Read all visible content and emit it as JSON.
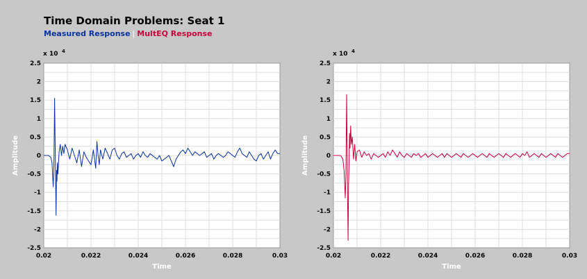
{
  "header": {
    "title": "Time Domain Problems: Seat 1",
    "legend": [
      {
        "label": "Measured Response",
        "color": "#0a32a0"
      },
      {
        "label": "MultEQ Response",
        "color": "#c8003c"
      }
    ],
    "separator": "|"
  },
  "chart_data": [
    {
      "type": "line",
      "xlabel": "Time",
      "ylabel": "Amplitude",
      "y_multiplier": "x 10",
      "y_exponent": "4",
      "xlim": [
        0.02,
        0.03
      ],
      "ylim": [
        -2.5,
        2.5
      ],
      "xticks": [
        "0.02",
        "0.022",
        "0.024",
        "0.026",
        "0.028",
        "0.03"
      ],
      "yticks": [
        "2.5",
        "2",
        "1.5",
        "1",
        "0.5",
        "0",
        "-0.5",
        "-1",
        "-1.5",
        "-2",
        "-2.5"
      ],
      "grid": true,
      "series": [
        {
          "name": "Measured Response",
          "color": "#0a32a0",
          "x": [
            0.02,
            0.0202,
            0.0203,
            0.02035,
            0.0204,
            0.02043,
            0.02046,
            0.02048,
            0.0205,
            0.02052,
            0.02054,
            0.02056,
            0.02058,
            0.0206,
            0.02065,
            0.0207,
            0.02075,
            0.0208,
            0.02085,
            0.0209,
            0.021,
            0.0211,
            0.0212,
            0.0213,
            0.0214,
            0.0215,
            0.0216,
            0.0217,
            0.0218,
            0.0219,
            0.022,
            0.0221,
            0.0222,
            0.02225,
            0.0223,
            0.02235,
            0.0224,
            0.0225,
            0.0226,
            0.0227,
            0.0228,
            0.0229,
            0.023,
            0.0231,
            0.0232,
            0.0233,
            0.0234,
            0.0235,
            0.0236,
            0.0237,
            0.0238,
            0.0239,
            0.024,
            0.0241,
            0.0242,
            0.0243,
            0.0244,
            0.0245,
            0.0246,
            0.0247,
            0.0248,
            0.0249,
            0.025,
            0.0251,
            0.0252,
            0.0253,
            0.0254,
            0.0255,
            0.0256,
            0.0257,
            0.0258,
            0.0259,
            0.026,
            0.0261,
            0.0262,
            0.0263,
            0.0264,
            0.0265,
            0.0266,
            0.0267,
            0.0268,
            0.0269,
            0.027,
            0.0271,
            0.0272,
            0.0273,
            0.0274,
            0.0275,
            0.0276,
            0.0277,
            0.0278,
            0.0279,
            0.028,
            0.0281,
            0.0282,
            0.0283,
            0.0284,
            0.0285,
            0.0286,
            0.0287,
            0.0288,
            0.0289,
            0.029,
            0.0291,
            0.0292,
            0.0293,
            0.0294,
            0.0295,
            0.0296,
            0.0297,
            0.0298,
            0.0299,
            0.03
          ],
          "y": [
            0,
            0,
            -0.05,
            -0.2,
            -0.85,
            -0.3,
            1.55,
            0.5,
            -0.6,
            -1.62,
            -0.4,
            -0.7,
            -0.2,
            -0.5,
            0.1,
            0.3,
            0.0,
            0.25,
            0.05,
            0.3,
            0.15,
            -0.1,
            0.2,
            0.0,
            -0.2,
            0.15,
            -0.3,
            0.1,
            -0.05,
            -0.15,
            -0.25,
            0.15,
            -0.35,
            0.38,
            0.0,
            -0.25,
            0.15,
            -0.1,
            0.2,
            0.05,
            -0.1,
            0.15,
            0.2,
            0.0,
            -0.1,
            0.05,
            0.1,
            -0.05,
            0.0,
            0.05,
            -0.1,
            0.0,
            0.05,
            -0.05,
            0.1,
            0.0,
            -0.05,
            0.05,
            0.0,
            -0.05,
            -0.1,
            0.0,
            -0.15,
            -0.1,
            -0.05,
            0.0,
            -0.15,
            -0.3,
            -0.1,
            0.0,
            0.1,
            0.15,
            0.05,
            0.2,
            0.1,
            0.0,
            0.1,
            0.05,
            0.0,
            0.05,
            0.1,
            -0.05,
            0.0,
            0.05,
            -0.1,
            0.0,
            0.05,
            0.0,
            -0.05,
            0.0,
            0.1,
            0.05,
            0.0,
            -0.05,
            0.1,
            0.2,
            0.05,
            0.0,
            -0.05,
            0.1,
            0.0,
            -0.1,
            -0.15,
            0.0,
            0.05,
            -0.1,
            0.0,
            0.1,
            -0.1,
            0.05,
            0.15,
            0.05,
            0.05
          ]
        }
      ]
    },
    {
      "type": "line",
      "xlabel": "Time",
      "ylabel": "Amplitude",
      "y_multiplier": "x 10",
      "y_exponent": "4",
      "xlim": [
        0.02,
        0.03
      ],
      "ylim": [
        -2.5,
        2.5
      ],
      "xticks": [
        "0.02",
        "0.022",
        "0.024",
        "0.026",
        "0.028",
        "0.03"
      ],
      "yticks": [
        "2.5",
        "2",
        "1.5",
        "1",
        "0.5",
        "0",
        "-0.5",
        "-1",
        "-1.5",
        "-2",
        "-2.5"
      ],
      "grid": true,
      "series": [
        {
          "name": "MultEQ Response",
          "color": "#c8003c",
          "x": [
            0.02,
            0.0203,
            0.0204,
            0.02045,
            0.0205,
            0.02053,
            0.02056,
            0.02058,
            0.0206,
            0.02062,
            0.02064,
            0.02066,
            0.02068,
            0.0207,
            0.02073,
            0.02076,
            0.0208,
            0.02085,
            0.0209,
            0.02095,
            0.021,
            0.0211,
            0.0212,
            0.0213,
            0.0214,
            0.0215,
            0.0216,
            0.0217,
            0.0218,
            0.0219,
            0.022,
            0.0221,
            0.0222,
            0.0223,
            0.0224,
            0.0225,
            0.0226,
            0.0227,
            0.0228,
            0.0229,
            0.023,
            0.0231,
            0.0232,
            0.0233,
            0.0234,
            0.0235,
            0.0236,
            0.0237,
            0.0238,
            0.0239,
            0.024,
            0.0241,
            0.0242,
            0.0243,
            0.0244,
            0.0245,
            0.0246,
            0.0247,
            0.0248,
            0.0249,
            0.025,
            0.0251,
            0.0252,
            0.0253,
            0.0254,
            0.0255,
            0.0256,
            0.0257,
            0.0258,
            0.0259,
            0.026,
            0.0261,
            0.0262,
            0.0263,
            0.0264,
            0.0265,
            0.0266,
            0.0267,
            0.0268,
            0.0269,
            0.027,
            0.0271,
            0.0272,
            0.0273,
            0.0274,
            0.0275,
            0.0276,
            0.0277,
            0.0278,
            0.0279,
            0.028,
            0.0281,
            0.0282,
            0.0283,
            0.0284,
            0.0285,
            0.0286,
            0.0287,
            0.0288,
            0.0289,
            0.029,
            0.0291,
            0.0292,
            0.0293,
            0.0294,
            0.0295,
            0.0296,
            0.0297,
            0.0298,
            0.0299,
            0.03
          ],
          "y": [
            0,
            0,
            -0.1,
            -0.4,
            -1.15,
            -0.5,
            1.65,
            0.3,
            -1.2,
            -2.3,
            -0.8,
            -0.3,
            0.6,
            0.2,
            0.8,
            0.3,
            0.5,
            -0.1,
            0.3,
            -0.15,
            0.1,
            0.15,
            -0.05,
            0.1,
            0.0,
            0.05,
            -0.1,
            0.05,
            0.0,
            -0.05,
            0.0,
            0.05,
            -0.05,
            0.1,
            0.0,
            0.15,
            0.05,
            -0.05,
            0.1,
            0.0,
            -0.05,
            0.05,
            0.0,
            -0.05,
            0.05,
            0.0,
            0.05,
            -0.05,
            0.0,
            0.05,
            -0.05,
            0.0,
            0.05,
            0.0,
            -0.05,
            0.0,
            0.05,
            -0.05,
            0.05,
            0.0,
            -0.05,
            0.0,
            0.05,
            0.0,
            -0.05,
            0.05,
            0.0,
            -0.05,
            0.0,
            0.05,
            0.0,
            -0.05,
            0.0,
            0.05,
            0.0,
            -0.05,
            0.05,
            0.0,
            -0.05,
            0.0,
            0.05,
            0.0,
            -0.05,
            0.05,
            0.0,
            -0.05,
            0.0,
            0.05,
            0.0,
            -0.05,
            0.05,
            0.0,
            0.1,
            -0.05,
            0.0,
            0.05,
            0.0,
            -0.05,
            0.05,
            0.0,
            -0.05,
            0.0,
            0.05,
            0.0,
            -0.05,
            0.05,
            0.0,
            -0.05,
            0.0,
            0.05,
            0.05
          ]
        }
      ]
    }
  ]
}
